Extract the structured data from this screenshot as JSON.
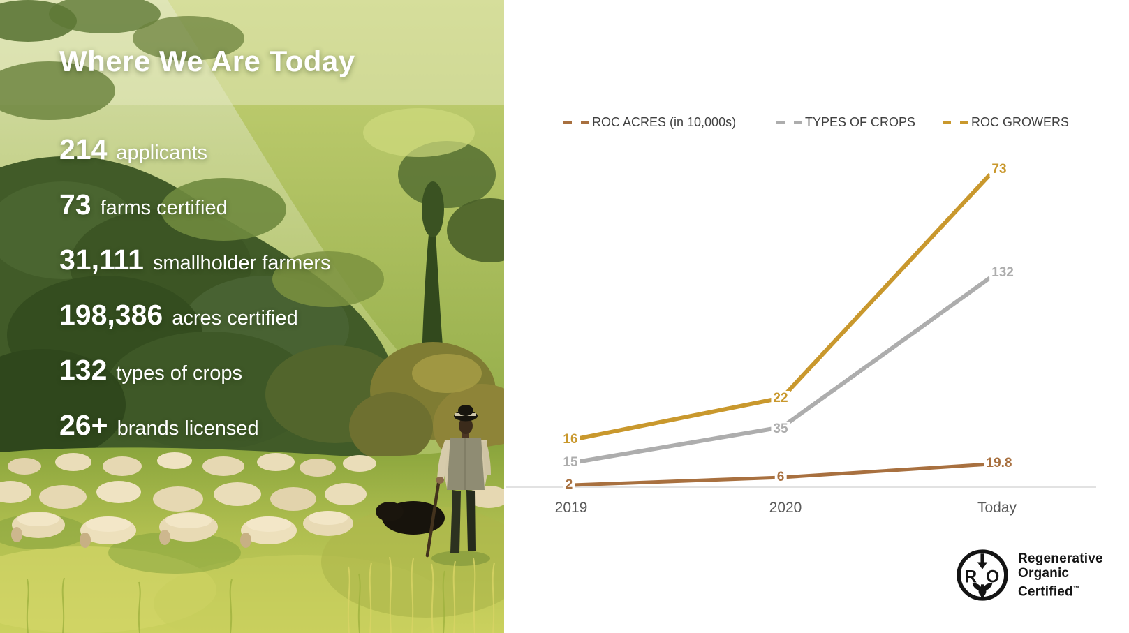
{
  "slide": {
    "title": "Where We Are Today"
  },
  "stats": [
    {
      "value": "214",
      "label": "applicants"
    },
    {
      "value": "73",
      "label": "farms certified"
    },
    {
      "value": "31,111",
      "label": "smallholder farmers"
    },
    {
      "value": "198,386",
      "label": "acres certified"
    },
    {
      "value": "132",
      "label": "types of crops"
    },
    {
      "value": "26+",
      "label": "brands licensed"
    }
  ],
  "chart_data": {
    "type": "line",
    "categories": [
      "2019",
      "2020",
      "Today"
    ],
    "series": [
      {
        "name": "ROC ACRES (in 10,000s)",
        "values": [
          2,
          6,
          19.8
        ],
        "color": "#A8703F"
      },
      {
        "name": "TYPES OF CROPS",
        "values": [
          15,
          35,
          132
        ],
        "color": "#ADADAD"
      },
      {
        "name": "ROC GROWERS",
        "values": [
          16,
          22,
          73
        ],
        "color": "#C9982D"
      }
    ],
    "legend_position": "top",
    "grid": false,
    "data_labels": true,
    "axis_color": "#D9D9D9",
    "category_label_color": "#595959",
    "legend_text_color": "#404040"
  },
  "logo": {
    "line1": "Regenerative",
    "line2": "Organic",
    "line3": "Certified",
    "tm": "™"
  }
}
